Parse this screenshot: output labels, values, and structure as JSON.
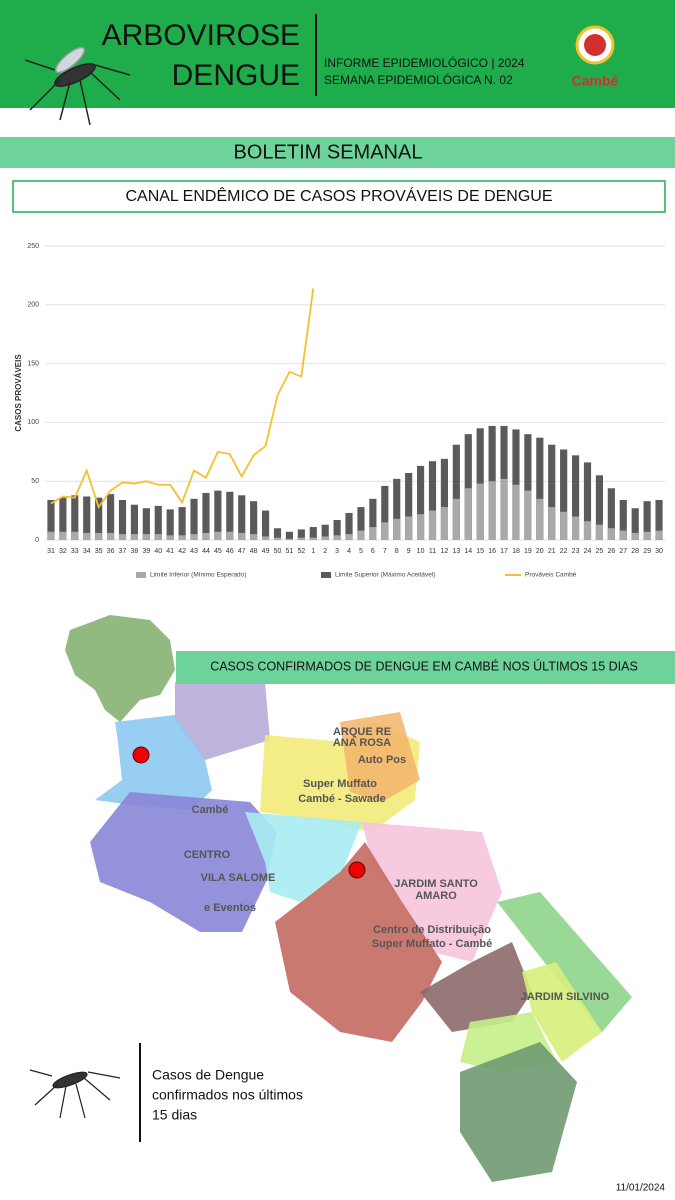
{
  "header": {
    "title_line1": "ARBOVIROSE",
    "title_line2": "DENGUE",
    "info_line1": "INFORME EPIDEMIOLÓGICO | 2024",
    "info_line2": "SEMANA EPIDEMIOLÓGICA  N. 02",
    "logo_text": "Cambé"
  },
  "banner": "BOLETIM SEMANAL",
  "chart_data": {
    "type": "bar",
    "title": "CANAL ENDÊMICO DE CASOS PROVÁVEIS DE DENGUE",
    "y_label": "CASOS PROVÁVEIS",
    "categories": [
      "31",
      "32",
      "33",
      "34",
      "35",
      "36",
      "37",
      "38",
      "39",
      "40",
      "41",
      "42",
      "43",
      "44",
      "45",
      "46",
      "47",
      "48",
      "49",
      "50",
      "51",
      "52",
      "1",
      "2",
      "3",
      "4",
      "5",
      "6",
      "7",
      "8",
      "9",
      "10",
      "11",
      "12",
      "13",
      "14",
      "15",
      "16",
      "17",
      "18",
      "19",
      "20",
      "21",
      "22",
      "23",
      "24",
      "25",
      "26",
      "27",
      "28",
      "29",
      "30"
    ],
    "series": [
      {
        "name": "Limite Superior (Máximo Aceitável)",
        "type": "bar",
        "color": "#5a5a5a",
        "values": [
          34,
          36,
          38,
          37,
          36,
          39,
          34,
          30,
          27,
          29,
          26,
          28,
          35,
          40,
          42,
          41,
          38,
          33,
          25,
          10,
          7,
          9,
          11,
          13,
          17,
          23,
          28,
          35,
          46,
          52,
          57,
          63,
          67,
          69,
          81,
          90,
          95,
          97,
          97,
          94,
          90,
          87,
          81,
          77,
          72,
          66,
          55,
          44,
          34,
          27,
          33,
          34
        ]
      },
      {
        "name": "Limite Inferior (Mínimo Esperado)",
        "type": "bar",
        "color": "#a9a9a9",
        "values": [
          7,
          7,
          7,
          6,
          6,
          6,
          5,
          5,
          5,
          5,
          4,
          4,
          5,
          6,
          7,
          7,
          6,
          5,
          3,
          2,
          1,
          2,
          2,
          3,
          4,
          5,
          8,
          11,
          15,
          18,
          20,
          22,
          25,
          28,
          35,
          44,
          48,
          50,
          52,
          47,
          42,
          35,
          28,
          24,
          20,
          16,
          13,
          10,
          8,
          6,
          7,
          8
        ]
      },
      {
        "name": "Prováveis Cambé",
        "type": "line",
        "color": "#f2c12e",
        "values": [
          31,
          37,
          36,
          59,
          28,
          42,
          49,
          48,
          50,
          47,
          47,
          32,
          59,
          53,
          75,
          73,
          54,
          72,
          80,
          123,
          143,
          139,
          214,
          null,
          null,
          null,
          null,
          null,
          null,
          null,
          null,
          null,
          null,
          null,
          null,
          null,
          null,
          null,
          null,
          null,
          null,
          null,
          null,
          null,
          null,
          null,
          null,
          null,
          null,
          null,
          null,
          null
        ]
      }
    ],
    "ylim": [
      0,
      250
    ],
    "yticks": [
      0,
      50,
      100,
      150,
      200,
      250
    ],
    "grid": true
  },
  "map": {
    "title": "CASOS CONFIRMADOS DE DENGUE EM CAMBÉ NOS ÚLTIMOS 15 DIAS",
    "labels": [
      "Cambé",
      "CENTRO",
      "VILA SALOME",
      "e Eventos",
      "Super Muffato",
      "Cambé - Sawade",
      "ARQUE RE",
      "ANA ROSA",
      "Auto Pos",
      "JARDIM SANTO",
      "AMARO",
      "Centro de Distribuição",
      "Super Muffato - Cambé",
      "JARDIM SILVINO"
    ]
  },
  "note_lines": [
    "Casos de Dengue",
    "confirmados nos últimos",
    "15 dias"
  ],
  "date": "11/01/2024"
}
